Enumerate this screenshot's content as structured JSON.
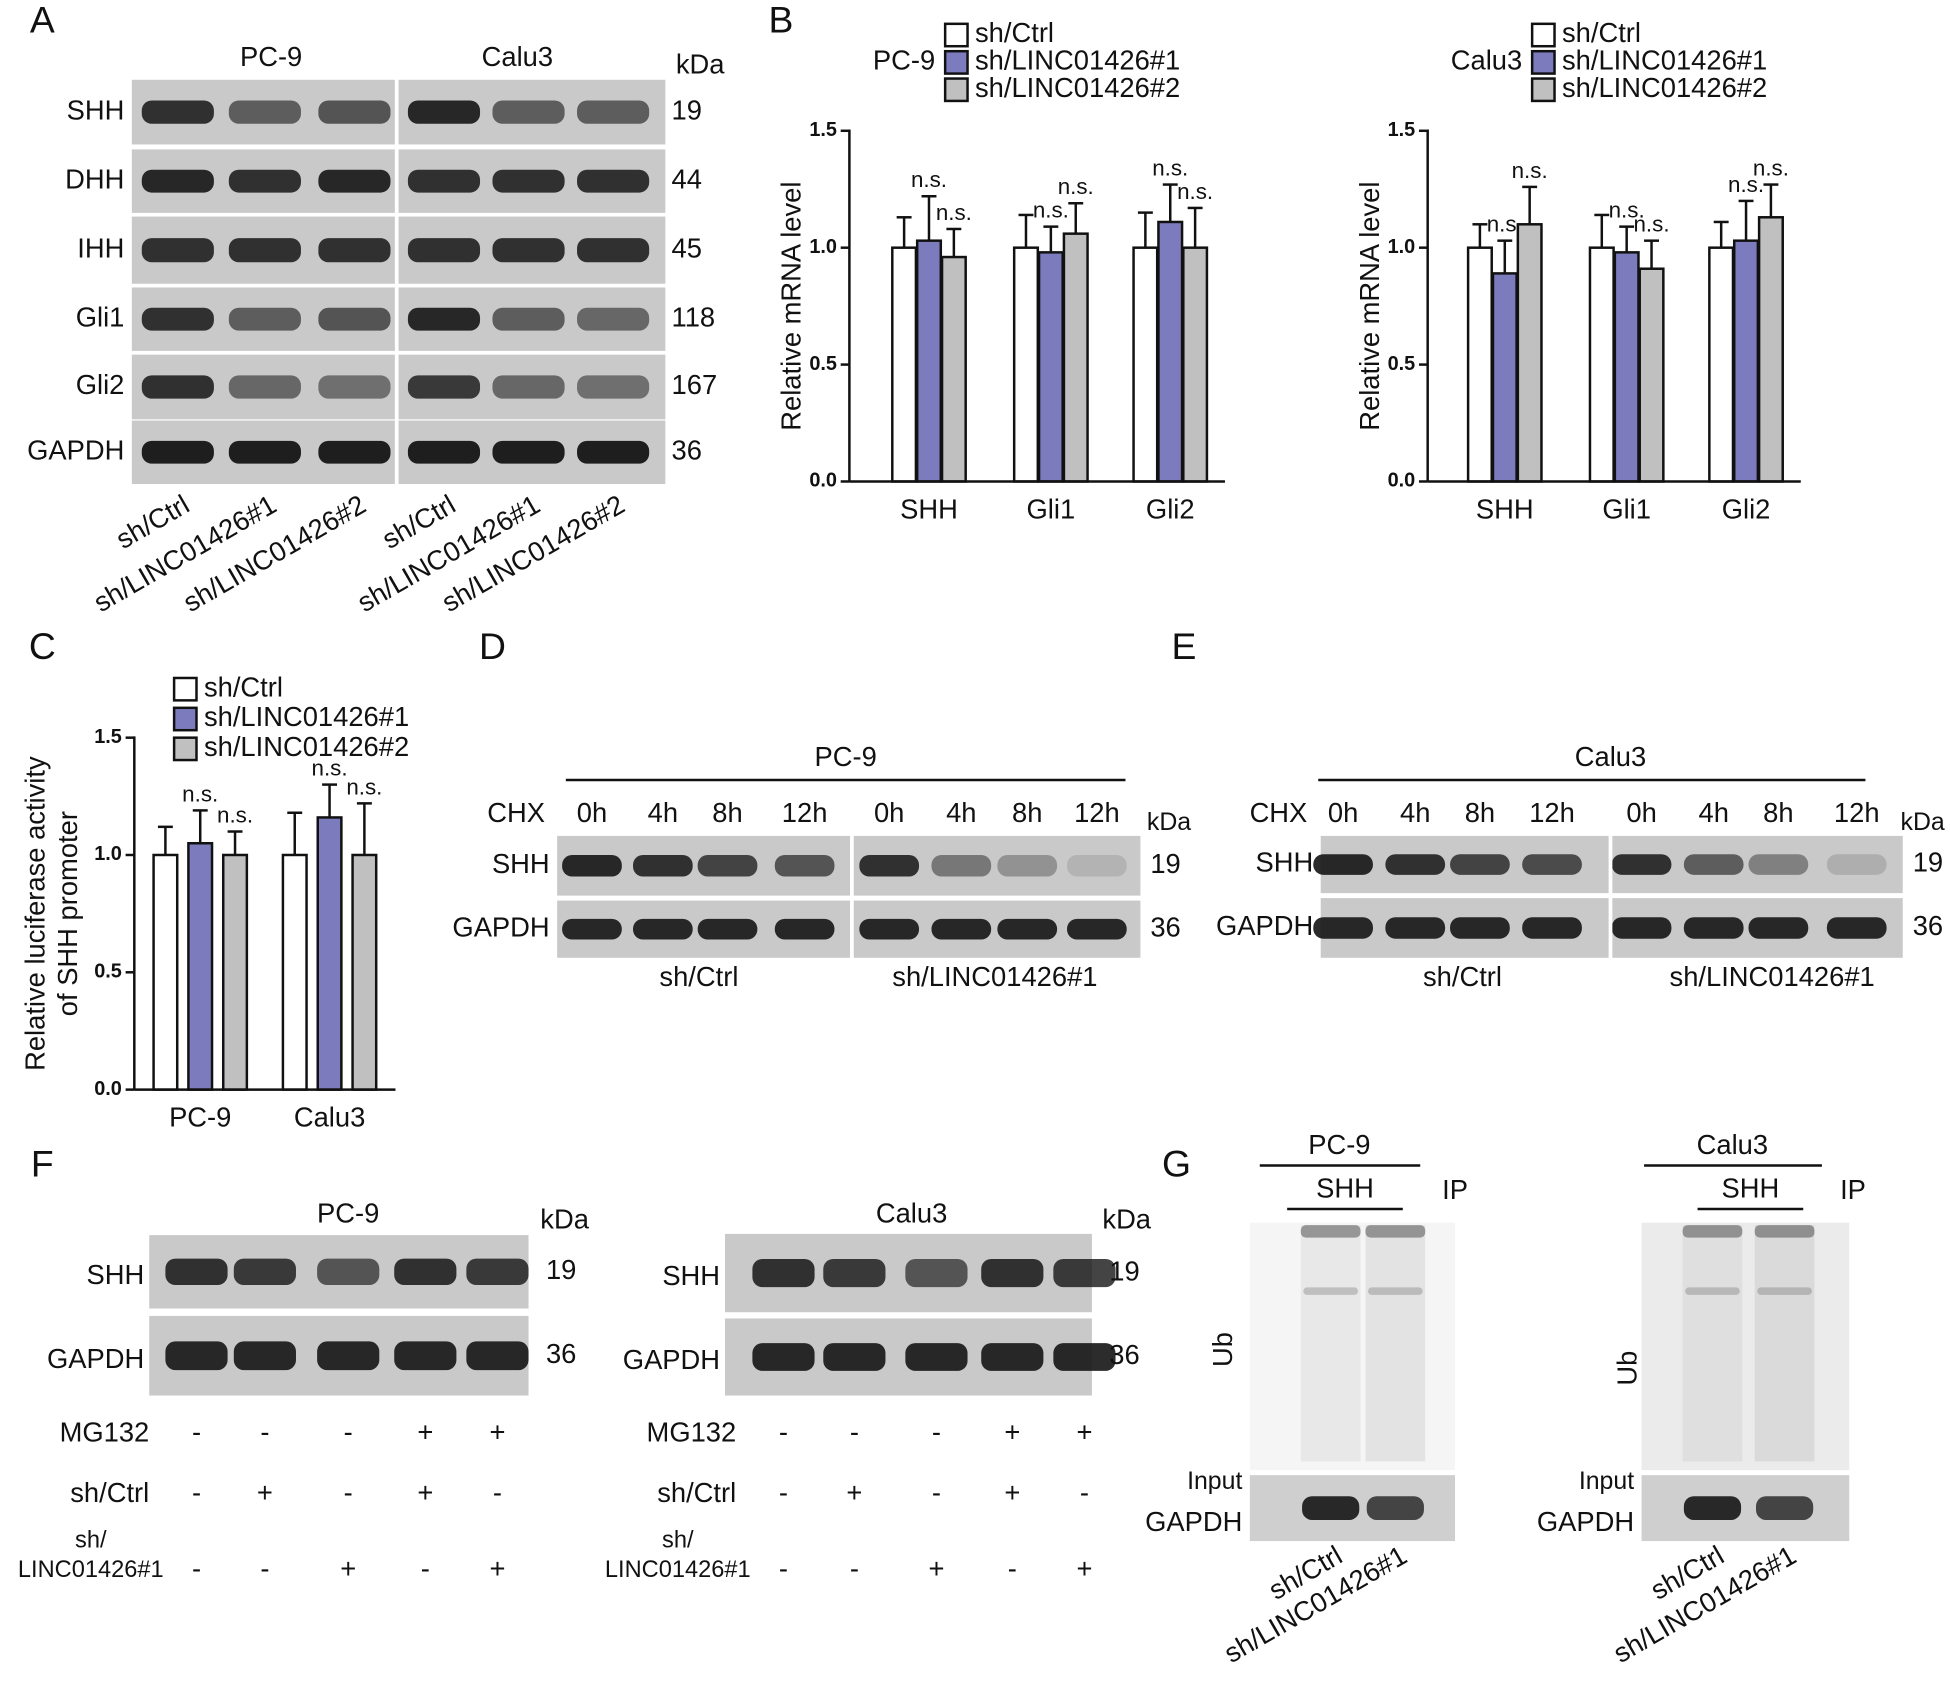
{
  "panel_labels": [
    "A",
    "B",
    "C",
    "D",
    "E",
    "F",
    "G"
  ],
  "chart_data": [
    {
      "type": "bar",
      "title": "PC-9",
      "ylabel": [
        "Relative mRNA level"
      ],
      "categories": [
        "SHH",
        "Gli1",
        "Gli2"
      ],
      "series": [
        {
          "name": "sh/Ctrl",
          "color": "#ffffff",
          "values": [
            1.0,
            1.0,
            1.0
          ],
          "errors": [
            0.13,
            0.14,
            0.15
          ]
        },
        {
          "name": "sh/LINC01426#1",
          "color": "#7b7bbd",
          "values": [
            1.03,
            0.98,
            1.11
          ],
          "errors": [
            0.19,
            0.11,
            0.16
          ],
          "annotations": [
            "n.s.",
            "n.s.",
            "n.s."
          ]
        },
        {
          "name": "sh/LINC01426#2",
          "color": "#c0c0c0",
          "values": [
            0.96,
            1.06,
            1.0
          ],
          "errors": [
            0.12,
            0.13,
            0.17
          ],
          "annotations": [
            "n.s.",
            "n.s.",
            "n.s."
          ]
        }
      ],
      "ylim": [
        0,
        1.5
      ],
      "yticks": [
        {
          "value": 0,
          "label": "0.0"
        },
        0.5,
        {
          "value": 1,
          "label": "1.0"
        },
        1.5
      ]
    },
    {
      "type": "bar",
      "title": "Calu3",
      "ylabel": [
        "Relative mRNA level"
      ],
      "categories": [
        "SHH",
        "Gli1",
        "Gli2"
      ],
      "series": [
        {
          "name": "sh/Ctrl",
          "color": "#ffffff",
          "values": [
            1.0,
            1.0,
            1.0
          ],
          "errors": [
            0.1,
            0.14,
            0.11
          ]
        },
        {
          "name": "sh/LINC01426#1",
          "color": "#7b7bbd",
          "values": [
            0.89,
            0.98,
            1.03
          ],
          "errors": [
            0.14,
            0.11,
            0.17
          ],
          "annotations": [
            "n.s.",
            "n.s.",
            "n.s."
          ]
        },
        {
          "name": "sh/LINC01426#2",
          "color": "#c0c0c0",
          "values": [
            1.1,
            0.91,
            1.13
          ],
          "errors": [
            0.16,
            0.12,
            0.14
          ],
          "annotations": [
            "n.s.",
            "n.s.",
            "n.s."
          ]
        }
      ],
      "ylim": [
        0,
        1.5
      ],
      "yticks": [
        {
          "value": 0,
          "label": "0.0"
        },
        0.5,
        {
          "value": 1,
          "label": "1.0"
        },
        1.5
      ]
    },
    {
      "type": "bar",
      "ylabel": [
        "Relative luciferase activity",
        "of SHH promoter"
      ],
      "categories": [
        "PC-9",
        "Calu3"
      ],
      "series": [
        {
          "name": "sh/Ctrl",
          "color": "#ffffff",
          "values": [
            1.0,
            1.0
          ],
          "errors": [
            0.12,
            0.18
          ]
        },
        {
          "name": "sh/LINC01426#1",
          "color": "#7b7bbd",
          "values": [
            1.05,
            1.16
          ],
          "errors": [
            0.14,
            0.14
          ],
          "annotations": [
            "n.s.",
            "n.s."
          ]
        },
        {
          "name": "sh/LINC01426#2",
          "color": "#c0c0c0",
          "values": [
            1.0,
            1.0
          ],
          "errors": [
            0.1,
            0.22
          ],
          "annotations": [
            "n.s.",
            "n.s."
          ]
        }
      ],
      "ylim": [
        0,
        1.5
      ],
      "yticks": [
        {
          "value": 0,
          "label": "0.0"
        },
        0.5,
        {
          "value": 1,
          "label": "1.0"
        },
        1.5
      ]
    }
  ],
  "panel_a": {
    "groups": [
      "PC-9",
      "Calu3"
    ],
    "unit": "kDa",
    "rows": [
      {
        "label": "SHH",
        "kda": 19
      },
      {
        "label": "DHH",
        "kda": 44
      },
      {
        "label": "IHH",
        "kda": 45
      },
      {
        "label": "Gli1",
        "kda": 118
      },
      {
        "label": "Gli2",
        "kda": 167
      },
      {
        "label": "GAPDH",
        "kda": 36
      }
    ],
    "lanes": [
      "sh/Ctrl",
      "sh/LINC01426#1",
      "sh/LINC01426#2",
      "sh/Ctrl",
      "sh/LINC01426#1",
      "sh/LINC01426#2"
    ]
  },
  "panel_d": {
    "title": "PC-9",
    "treatment": "CHX",
    "times": [
      "0h",
      "4h",
      "8h",
      "12h",
      "0h",
      "4h",
      "8h",
      "12h"
    ],
    "unit": "kDa",
    "rows": [
      {
        "label": "SHH",
        "kda": 19
      },
      {
        "label": "GAPDH",
        "kda": 36
      }
    ],
    "groups": [
      "sh/Ctrl",
      "sh/LINC01426#1"
    ]
  },
  "panel_e": {
    "title": "Calu3",
    "treatment": "CHX",
    "times": [
      "0h",
      "4h",
      "8h",
      "12h",
      "0h",
      "4h",
      "8h",
      "12h"
    ],
    "unit": "kDa",
    "rows": [
      {
        "label": "SHH",
        "kda": 19
      },
      {
        "label": "GAPDH",
        "kda": 36
      }
    ],
    "groups": [
      "sh/Ctrl",
      "sh/LINC01426#1"
    ]
  },
  "panel_f": [
    {
      "title": "PC-9",
      "unit": "kDa",
      "rows": [
        {
          "label": "SHH",
          "kda": 19
        },
        {
          "label": "GAPDH",
          "kda": 36
        }
      ],
      "conditions": [
        {
          "label": [
            "MG132"
          ],
          "signs": [
            "-",
            "-",
            "-",
            "+",
            "+"
          ]
        },
        {
          "label": [
            "sh/Ctrl"
          ],
          "signs": [
            "-",
            "+",
            "-",
            "+",
            "-"
          ]
        },
        {
          "label": [
            "sh/",
            "LINC01426#1"
          ],
          "signs": [
            "-",
            "-",
            "+",
            "-",
            "+"
          ]
        }
      ]
    },
    {
      "title": "Calu3",
      "unit": "kDa",
      "rows": [
        {
          "label": "SHH",
          "kda": 19
        },
        {
          "label": "GAPDH",
          "kda": 36
        }
      ],
      "conditions": [
        {
          "label": [
            "MG132"
          ],
          "signs": [
            "-",
            "-",
            "-",
            "+",
            "+"
          ]
        },
        {
          "label": [
            "sh/Ctrl"
          ],
          "signs": [
            "-",
            "+",
            "-",
            "+",
            "-"
          ]
        },
        {
          "label": [
            "sh/",
            "LINC01426#1"
          ],
          "signs": [
            "-",
            "-",
            "+",
            "-",
            "+"
          ]
        }
      ]
    }
  ],
  "panel_g": [
    {
      "title": "PC-9",
      "ip_target": "SHH",
      "ip": "IP",
      "blot": "Ub",
      "input": "Input",
      "loading": "GAPDH",
      "lanes": [
        "sh/Ctrl",
        "sh/LINC01426#1"
      ]
    },
    {
      "title": "Calu3",
      "ip_target": "SHH",
      "ip": "IP",
      "blot": "Ub",
      "input": "Input",
      "loading": "GAPDH",
      "lanes": [
        "sh/Ctrl",
        "sh/LINC01426#1"
      ]
    }
  ]
}
